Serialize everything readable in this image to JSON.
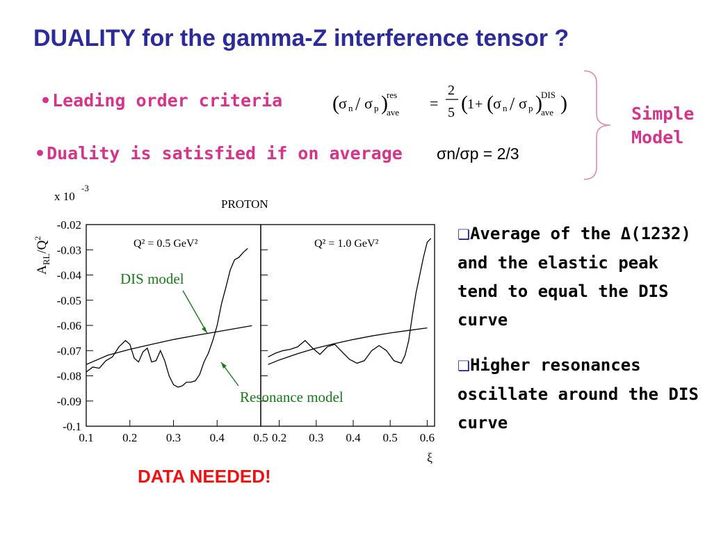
{
  "slide": {
    "title": "DUALITY for the gamma-Z interference tensor ?",
    "bullet1": "Leading order criteria",
    "bullet2": "Duality is satisfied if on average",
    "ratio_text": "σn/σp = 2/3",
    "simple_model": [
      "Simple",
      "Model"
    ],
    "formula": {
      "sigma": "σ",
      "n": "n",
      "p": "p",
      "res": "res",
      "ave": "ave",
      "dis": "DIS",
      "numerator": "2",
      "denominator": "5",
      "one": "1",
      "plus": "+",
      "equals": "="
    },
    "right_points": [
      "Average of the Δ(1232) and the elastic peak tend to equal the DIS curve",
      "Higher resonances oscillate around the DIS curve"
    ],
    "data_needed": "DATA NEEDED!",
    "accent_pink": "#d6338a",
    "title_blue": "#2b2b9a",
    "label_green": "#1a7a1a",
    "alert_red": "#ee1111"
  },
  "chart_data": {
    "type": "line",
    "title": "PROTON",
    "y_multiplier": "x 10",
    "y_exponent": "-3",
    "ylabel": "A_RL/Q²",
    "xlabel": "ξ",
    "ylim": [
      -0.1,
      -0.02
    ],
    "yticks": [
      "-0.02",
      "-0.03",
      "-0.04",
      "-0.05",
      "-0.06",
      "-0.07",
      "-0.08",
      "-0.09",
      "-0.1"
    ],
    "panels": [
      {
        "label": "Q² = 0.5 GeV²",
        "xlim": [
          0.1,
          0.5
        ],
        "xticks": [
          "0.1",
          "0.2",
          "0.3",
          "0.4",
          "0.5"
        ],
        "series": [
          {
            "role": "DIS",
            "x": [
              0.1,
              0.15,
              0.2,
              0.25,
              0.3,
              0.35,
              0.4,
              0.45,
              0.48
            ],
            "y": [
              -0.0755,
              -0.0718,
              -0.0695,
              -0.0675,
              -0.0656,
              -0.064,
              -0.0625,
              -0.061,
              -0.0601
            ]
          },
          {
            "role": "resonance",
            "x": [
              0.1,
              0.115,
              0.13,
              0.145,
              0.16,
              0.175,
              0.19,
              0.2,
              0.21,
              0.22,
              0.23,
              0.24,
              0.25,
              0.26,
              0.27,
              0.28,
              0.29,
              0.3,
              0.31,
              0.32,
              0.33,
              0.34,
              0.35,
              0.36,
              0.37,
              0.38,
              0.39,
              0.4,
              0.41,
              0.42,
              0.43,
              0.44,
              0.45,
              0.46,
              0.47
            ],
            "y": [
              -0.0785,
              -0.0765,
              -0.077,
              -0.074,
              -0.0725,
              -0.0685,
              -0.066,
              -0.0675,
              -0.073,
              -0.0745,
              -0.0705,
              -0.069,
              -0.0745,
              -0.074,
              -0.07,
              -0.074,
              -0.08,
              -0.0835,
              -0.0845,
              -0.084,
              -0.0825,
              -0.0825,
              -0.082,
              -0.0795,
              -0.0745,
              -0.071,
              -0.066,
              -0.06,
              -0.0515,
              -0.045,
              -0.038,
              -0.034,
              -0.033,
              -0.031,
              -0.0295
            ]
          }
        ]
      },
      {
        "label": "Q² = 1.0 GeV²",
        "xlim": [
          0.15,
          0.62
        ],
        "xticks": [
          "0.2",
          "0.3",
          "0.4",
          "0.5",
          "0.6"
        ],
        "series": [
          {
            "role": "DIS",
            "x": [
              0.17,
              0.2,
              0.25,
              0.3,
              0.35,
              0.4,
              0.45,
              0.5,
              0.55,
              0.6
            ],
            "y": [
              -0.0755,
              -0.0737,
              -0.0712,
              -0.069,
              -0.0672,
              -0.0656,
              -0.0642,
              -0.063,
              -0.062,
              -0.061
            ]
          },
          {
            "role": "resonance",
            "x": [
              0.17,
              0.19,
              0.21,
              0.23,
              0.25,
              0.27,
              0.29,
              0.31,
              0.33,
              0.35,
              0.37,
              0.39,
              0.41,
              0.43,
              0.45,
              0.47,
              0.49,
              0.51,
              0.53,
              0.54,
              0.55,
              0.56,
              0.57,
              0.58,
              0.59,
              0.6,
              0.61
            ],
            "y": [
              -0.0725,
              -0.071,
              -0.07,
              -0.0695,
              -0.0685,
              -0.066,
              -0.069,
              -0.0715,
              -0.0685,
              -0.0675,
              -0.0705,
              -0.0735,
              -0.075,
              -0.074,
              -0.07,
              -0.068,
              -0.07,
              -0.074,
              -0.075,
              -0.072,
              -0.066,
              -0.056,
              -0.047,
              -0.04,
              -0.033,
              -0.027,
              -0.0255
            ]
          }
        ]
      }
    ],
    "annotations": [
      "DIS model",
      "Resonance model"
    ]
  }
}
